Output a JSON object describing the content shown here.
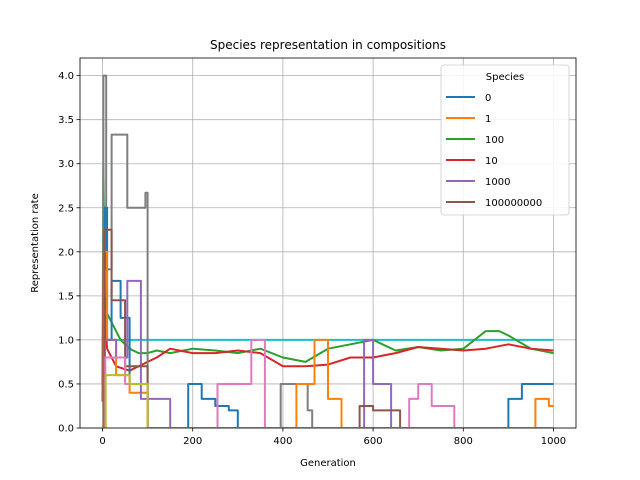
{
  "chart_data": {
    "type": "line",
    "title": "Species representation in compositions",
    "xlabel": "Generation",
    "ylabel": "Representation rate",
    "xlim": [
      -50,
      1050
    ],
    "ylim": [
      0,
      4.2
    ],
    "xticks": [
      0,
      200,
      400,
      600,
      800,
      1000
    ],
    "yticks": [
      0.0,
      0.5,
      1.0,
      1.5,
      2.0,
      2.5,
      3.0,
      3.5,
      4.0
    ],
    "xtick_labels": [
      "0",
      "200",
      "400",
      "600",
      "800",
      "1000"
    ],
    "ytick_labels": [
      "0.0",
      "0.5",
      "1.0",
      "1.5",
      "2.0",
      "2.5",
      "3.0",
      "3.5",
      "4.0"
    ],
    "grid": true,
    "legend": {
      "title": "Species",
      "placement": "top-right",
      "entries": [
        {
          "name": "0",
          "color": "#1f77b4"
        },
        {
          "name": "1",
          "color": "#ff7f0e"
        },
        {
          "name": "100",
          "color": "#2ca02c"
        },
        {
          "name": "10",
          "color": "#d62728"
        },
        {
          "name": "1000",
          "color": "#9467bd"
        },
        {
          "name": "100000000",
          "color": "#8c564b"
        }
      ]
    },
    "series": [
      {
        "color": "#17becf",
        "x": [
          0,
          3,
          3,
          100,
          100,
          1000
        ],
        "y": [
          0,
          0,
          1.0,
          1.0,
          1.0,
          1.0
        ]
      },
      {
        "color": "#2ca02c",
        "x": [
          0,
          2,
          5,
          10,
          20,
          40,
          60,
          80,
          100,
          120,
          150,
          200,
          250,
          300,
          350,
          400,
          450,
          500,
          550,
          600,
          650,
          700,
          750,
          800,
          850,
          880,
          900,
          950,
          1000
        ],
        "y": [
          0.5,
          3.0,
          1.5,
          1.3,
          1.2,
          1.0,
          0.9,
          0.85,
          0.85,
          0.88,
          0.85,
          0.9,
          0.88,
          0.85,
          0.9,
          0.8,
          0.75,
          0.9,
          0.95,
          1.0,
          0.88,
          0.92,
          0.88,
          0.9,
          1.1,
          1.1,
          1.05,
          0.9,
          0.85
        ]
      },
      {
        "color": "#d62728",
        "x": [
          0,
          2,
          5,
          10,
          30,
          60,
          100,
          120,
          150,
          200,
          250,
          300,
          350,
          400,
          450,
          500,
          550,
          600,
          650,
          700,
          750,
          800,
          850,
          900,
          950,
          1000
        ],
        "y": [
          0.3,
          2.0,
          1.3,
          0.9,
          0.7,
          0.65,
          0.75,
          0.8,
          0.9,
          0.85,
          0.85,
          0.88,
          0.85,
          0.7,
          0.7,
          0.72,
          0.8,
          0.8,
          0.85,
          0.92,
          0.9,
          0.88,
          0.9,
          0.95,
          0.9,
          0.88
        ]
      },
      {
        "color": "#7f7f7f",
        "x": [
          0,
          2,
          2,
          8,
          8,
          20,
          20,
          55,
          55,
          95,
          95,
          100,
          100,
          395,
          395,
          455,
          455,
          465,
          465
        ],
        "y": [
          0,
          0,
          4.0,
          4.0,
          1.8,
          1.8,
          3.33,
          3.33,
          2.5,
          2.5,
          2.67,
          2.67,
          0,
          0,
          0.5,
          0.5,
          0.2,
          0.2,
          0
        ]
      },
      {
        "color": "#1f77b4",
        "x": [
          0,
          5,
          5,
          10,
          10,
          20,
          20,
          40,
          40,
          60,
          60,
          100,
          100,
          190,
          190,
          220,
          220,
          250,
          250,
          280,
          280,
          300,
          300,
          900,
          900,
          930,
          930,
          1000
        ],
        "y": [
          0,
          0,
          2.5,
          2.5,
          1.0,
          1.0,
          1.67,
          1.67,
          1.25,
          1.25,
          0.5,
          0.5,
          0,
          0,
          0.5,
          0.5,
          0.33,
          0.33,
          0.25,
          0.25,
          0.2,
          0.2,
          0,
          0,
          0.33,
          0.33,
          0.5,
          0.5
        ]
      },
      {
        "color": "#ff7f0e",
        "x": [
          0,
          3,
          3,
          10,
          10,
          30,
          30,
          60,
          60,
          100,
          100,
          430,
          430,
          470,
          470,
          500,
          500,
          530,
          530,
          960,
          960,
          990,
          990,
          1000
        ],
        "y": [
          0,
          0,
          2.0,
          2.0,
          1.0,
          1.0,
          0.6,
          0.6,
          0.4,
          0.4,
          0,
          0,
          0.5,
          0.5,
          1.0,
          1.0,
          0.33,
          0.33,
          0,
          0,
          0.33,
          0.33,
          0.25,
          0.25
        ]
      },
      {
        "color": "#9467bd",
        "x": [
          0,
          5,
          5,
          30,
          30,
          55,
          55,
          85,
          85,
          100,
          100,
          150,
          150,
          580,
          580,
          600,
          600,
          640,
          640,
          1000
        ],
        "y": [
          0,
          0,
          1.0,
          1.0,
          0.8,
          0.8,
          1.67,
          1.67,
          0.33,
          0.33,
          0.33,
          0.33,
          0,
          0,
          1.0,
          1.0,
          0.5,
          0.5,
          0,
          0
        ]
      },
      {
        "color": "#8c564b",
        "x": [
          0,
          4,
          4,
          20,
          20,
          50,
          50,
          100,
          100,
          570,
          570,
          600,
          600,
          660,
          660,
          1000
        ],
        "y": [
          0,
          0,
          2.25,
          2.25,
          1.45,
          1.45,
          0.7,
          0.7,
          0,
          0,
          0.25,
          0.25,
          0.2,
          0.2,
          0,
          0
        ]
      },
      {
        "color": "#e377c2",
        "x": [
          0,
          6,
          6,
          50,
          50,
          100,
          100,
          255,
          255,
          330,
          330,
          360,
          360,
          680,
          680,
          700,
          700,
          730,
          730,
          780,
          780,
          1000
        ],
        "y": [
          0,
          0,
          0.8,
          0.8,
          0.5,
          0.5,
          0,
          0,
          0.5,
          0.5,
          1.0,
          1.0,
          0,
          0,
          0.33,
          0.33,
          0.5,
          0.5,
          0.25,
          0.25,
          0,
          0
        ]
      },
      {
        "color": "#bcbd22",
        "x": [
          0,
          7,
          7,
          60,
          60,
          100,
          100,
          1000
        ],
        "y": [
          0,
          0,
          0.6,
          0.6,
          0.5,
          0.5,
          0,
          0
        ]
      }
    ]
  }
}
